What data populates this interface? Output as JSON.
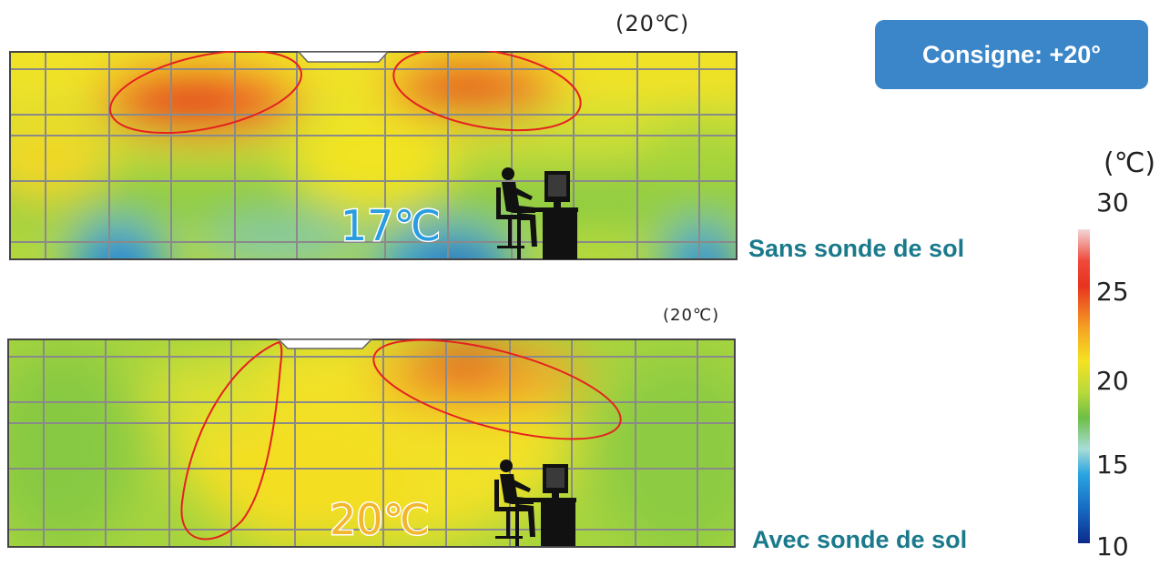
{
  "top_panel": {
    "setpoint_label": "(20℃)",
    "temperature_label": "17℃",
    "caption": "Sans sonde de sol"
  },
  "bottom_panel": {
    "setpoint_label": "(20℃)",
    "temperature_label": "20℃",
    "caption": "Avec sonde de sol"
  },
  "consigne_label": "Consigne: +20°",
  "scale": {
    "unit": "(℃)",
    "ticks": [
      "30",
      "25",
      "20",
      "15",
      "10"
    ]
  },
  "colors": {
    "caption": "#1a7a8c",
    "consigne_bg": "#3b86c8",
    "hot": "#e8331f",
    "warm": "#f5e222",
    "mild": "#6dbf45",
    "cold": "#2aa5e0",
    "ellipse": "#e52121"
  }
}
